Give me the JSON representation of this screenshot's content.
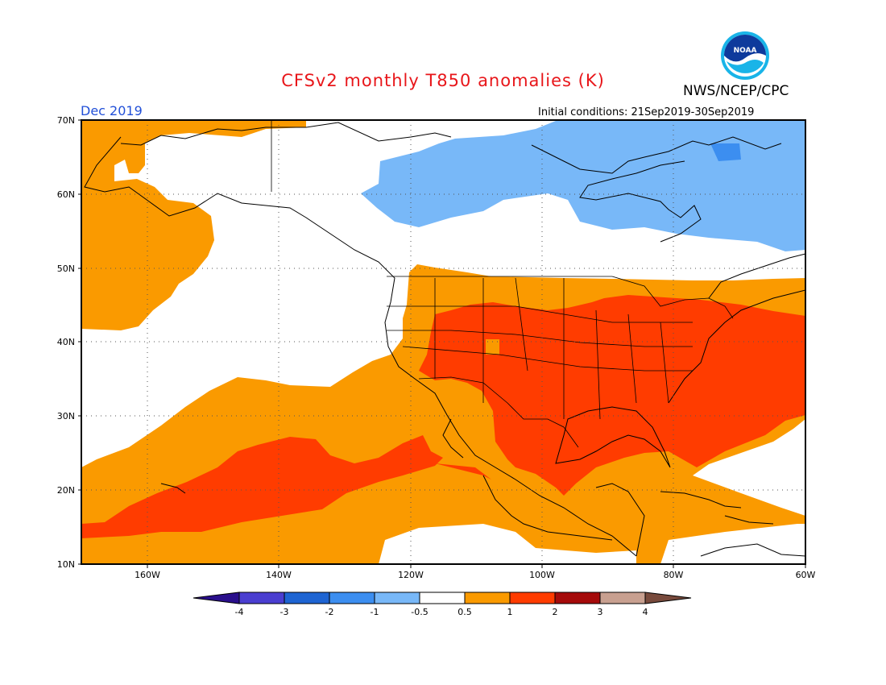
{
  "header": {
    "title": "CFSv2 monthly T850 anomalies (K)",
    "month": "Dec 2019",
    "agency": "NWS/NCEP/CPC",
    "initial_conditions": "Initial conditions: 21Sep2019-30Sep2019",
    "logo_text": "NOAA"
  },
  "map": {
    "lat_labels": [
      "70N",
      "60N",
      "50N",
      "40N",
      "30N",
      "20N",
      "10N"
    ],
    "lon_labels": [
      "160W",
      "140W",
      "120W",
      "100W",
      "80W",
      "60W"
    ],
    "extent": {
      "lon_min": -170,
      "lon_max": -60,
      "lat_min": 10,
      "lat_max": 70
    }
  },
  "colorbar": {
    "labels": [
      "-4",
      "-3",
      "-2",
      "-1",
      "-0.5",
      "0.5",
      "1",
      "2",
      "3",
      "4"
    ],
    "colors": {
      "lt_-4": "#2a0f8c",
      "-4_-3": "#4a3ed0",
      "-3_-2": "#1e64d2",
      "-2_-1": "#3c8ef0",
      "-1_-0.5": "#78b8f8",
      "-0.5_0.5": "#ffffff",
      "0.5_1": "#fa9a00",
      "1_2": "#ff3c00",
      "2_3": "#a50a0a",
      "3_4": "#c8a090",
      "gt_4": "#784a3c"
    }
  }
}
